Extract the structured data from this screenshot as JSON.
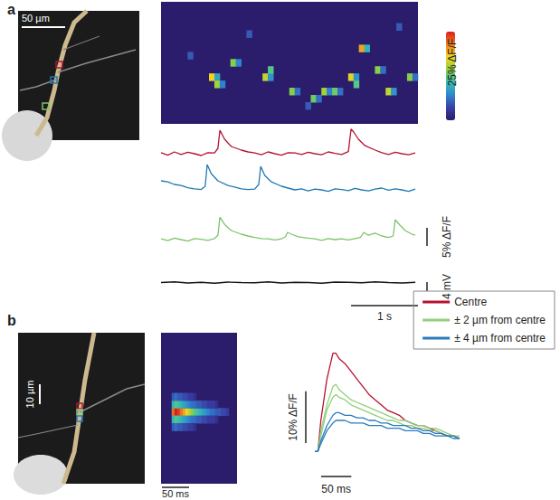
{
  "chart_data": [
    {
      "type": "image",
      "title": "a",
      "scale_bar": {
        "value": 50,
        "label": "50 µm"
      },
      "colors": [
        "#b5122f",
        "#1f78b4",
        "#7dc36b"
      ]
    },
    {
      "type": "heatmap",
      "x_bins": 48,
      "y_bins": 17,
      "color_range": [
        0,
        25
      ],
      "colorbar_label": "25% ΔF/F",
      "tick_labels": false,
      "cells": [
        [
          9,
          10,
          18
        ],
        [
          10,
          10,
          9
        ],
        [
          10,
          11,
          15
        ],
        [
          11,
          11,
          7
        ],
        [
          13,
          8,
          14
        ],
        [
          14,
          8,
          7
        ],
        [
          19,
          10,
          16
        ],
        [
          20,
          10,
          8
        ],
        [
          20,
          9,
          12
        ],
        [
          24,
          12,
          14
        ],
        [
          25,
          12,
          6
        ],
        [
          28,
          13,
          13
        ],
        [
          29,
          13,
          6
        ],
        [
          30,
          12,
          15
        ],
        [
          31,
          12,
          7
        ],
        [
          32,
          12,
          13
        ],
        [
          33,
          12,
          6
        ],
        [
          35,
          10,
          17
        ],
        [
          36,
          10,
          8
        ],
        [
          36,
          11,
          12
        ],
        [
          37,
          6,
          20
        ],
        [
          38,
          6,
          10
        ],
        [
          40,
          9,
          14
        ],
        [
          41,
          9,
          6
        ],
        [
          42,
          12,
          16
        ],
        [
          43,
          12,
          8
        ],
        [
          46,
          10,
          14
        ],
        [
          47,
          10,
          6
        ],
        [
          5,
          7,
          5
        ],
        [
          16,
          4,
          5
        ],
        [
          27,
          14,
          5
        ],
        [
          44,
          3,
          5
        ]
      ]
    },
    {
      "type": "line",
      "xlim": [
        0,
        3.84
      ],
      "ylim": [
        -2,
        8
      ],
      "tick_labels": false,
      "series": [
        {
          "color": "#b5122f",
          "x": [
            0,
            0.1,
            0.2,
            0.3,
            0.4,
            0.5,
            0.6,
            0.7,
            0.8,
            0.85,
            0.88,
            0.95,
            1.05,
            1.2,
            1.3,
            1.4,
            1.5,
            1.6,
            1.7,
            1.8,
            1.9,
            2.0,
            2.1,
            2.2,
            2.3,
            2.4,
            2.5,
            2.6,
            2.7,
            2.8,
            2.84,
            2.88,
            2.95,
            3.05,
            3.2,
            3.3,
            3.4,
            3.5,
            3.6,
            3.7,
            3.8
          ],
          "values": [
            0.3,
            -0.4,
            0.5,
            -0.2,
            0.4,
            0,
            -0.5,
            0.3,
            0.2,
            1.5,
            6.5,
            4,
            2,
            1,
            0.5,
            0.2,
            -0.3,
            0.5,
            0,
            -0.4,
            0.3,
            0.2,
            -0.2,
            0.4,
            0,
            -0.3,
            0.5,
            0.1,
            -0.2,
            0.6,
            6.8,
            6,
            4,
            2.2,
            1,
            0.3,
            -0.2,
            0.4,
            0,
            -0.3,
            0.2
          ]
        }
      ]
    },
    {
      "type": "line",
      "xlim": [
        0,
        3.84
      ],
      "ylim": [
        -2.5,
        7.5
      ],
      "tick_labels": false,
      "series": [
        {
          "color": "#1f78b4",
          "x": [
            0,
            0.1,
            0.2,
            0.3,
            0.4,
            0.5,
            0.6,
            0.66,
            0.69,
            0.75,
            0.85,
            1.0,
            1.1,
            1.2,
            1.3,
            1.4,
            1.46,
            1.49,
            1.55,
            1.65,
            1.8,
            1.9,
            2.0,
            2.1,
            2.2,
            2.3,
            2.4,
            2.5,
            2.6,
            2.7,
            2.8,
            2.9,
            3.0,
            3.1,
            3.2,
            3.3,
            3.4,
            3.5,
            3.6,
            3.7,
            3.8
          ],
          "values": [
            2.5,
            2.2,
            1.5,
            1.2,
            0.6,
            0.3,
            0.1,
            1,
            7,
            4.5,
            2.5,
            1.2,
            0.8,
            0.3,
            0.1,
            0.2,
            1.5,
            6.5,
            4,
            2.2,
            1,
            0.5,
            0,
            0.3,
            -0.3,
            0.2,
            0,
            -0.4,
            0.3,
            0.1,
            -0.2,
            0.4,
            0,
            -0.3,
            0.2,
            0.5,
            -0.1,
            0.3,
            0,
            -0.4,
            0.2
          ]
        }
      ]
    },
    {
      "type": "line",
      "xlim": [
        0,
        3.84
      ],
      "ylim": [
        -2.5,
        7.5
      ],
      "tick_labels": false,
      "scale_bars": [
        {
          "axis": "y",
          "value": 5,
          "label": "5% ΔF/F"
        }
      ],
      "series": [
        {
          "color": "#7dc36b",
          "x": [
            0,
            0.1,
            0.2,
            0.3,
            0.4,
            0.5,
            0.6,
            0.7,
            0.8,
            0.85,
            0.88,
            0.95,
            1.05,
            1.2,
            1.3,
            1.4,
            1.5,
            1.6,
            1.7,
            1.8,
            1.86,
            1.89,
            1.95,
            2.05,
            2.2,
            2.3,
            2.4,
            2.5,
            2.6,
            2.7,
            2.8,
            2.9,
            2.98,
            3.03,
            3.1,
            3.2,
            3.3,
            3.4,
            3.47,
            3.5,
            3.57,
            3.65,
            3.75,
            3.8
          ],
          "values": [
            0.2,
            -0.3,
            0.4,
            0,
            -0.4,
            0.3,
            0.1,
            -0.2,
            0.3,
            1.2,
            6.2,
            4.2,
            2.5,
            1.5,
            1,
            0.6,
            0.3,
            0.2,
            -0.1,
            0.2,
            0.8,
            2,
            1.5,
            0.8,
            0.4,
            0.2,
            -0.2,
            0.3,
            0,
            0.2,
            -0.1,
            0.3,
            0.6,
            2,
            1.2,
            1.8,
            1,
            0.6,
            1,
            5.5,
            4,
            2.5,
            1.5,
            1.2
          ]
        }
      ]
    },
    {
      "type": "line",
      "xlim": [
        0,
        3.84
      ],
      "ylim": [
        -5,
        5
      ],
      "tick_labels": false,
      "scale_bars": [
        {
          "axis": "y",
          "value": 4,
          "label": "4 mV"
        },
        {
          "axis": "x",
          "value": 1,
          "label": "1 s"
        }
      ],
      "series": [
        {
          "color": "#111111",
          "x": [
            0,
            0.2,
            0.4,
            0.6,
            0.8,
            1.0,
            1.2,
            1.4,
            1.6,
            1.8,
            2.0,
            2.2,
            2.4,
            2.6,
            2.8,
            3.0,
            3.2,
            3.4,
            3.6,
            3.8
          ],
          "values": [
            0,
            0.3,
            -0.2,
            0.1,
            -0.3,
            0.2,
            0,
            -0.1,
            0.3,
            -0.2,
            0.1,
            0,
            -0.3,
            0.2,
            0.1,
            -0.1,
            0.3,
            0,
            -0.2,
            0.1
          ]
        }
      ]
    },
    {
      "type": "image",
      "title": "b",
      "scale_bar": {
        "value": 10,
        "label": "10 µm"
      },
      "colors": [
        "#b5122f",
        "#8fd07a",
        "#2a7bbf"
      ]
    },
    {
      "type": "heatmap",
      "x_bins": 28,
      "y_bins": 20,
      "xlim": [
        0,
        140
      ],
      "color_range": [
        0,
        25
      ],
      "tick_labels": false,
      "scale_bars": [
        {
          "axis": "x",
          "value": 50,
          "label": "50 ms"
        }
      ],
      "cells": [
        [
          4,
          10,
          22
        ],
        [
          5,
          10,
          25
        ],
        [
          6,
          10,
          24
        ],
        [
          7,
          10,
          22
        ],
        [
          8,
          10,
          20
        ],
        [
          9,
          10,
          18
        ],
        [
          10,
          10,
          16
        ],
        [
          11,
          10,
          14
        ],
        [
          12,
          10,
          12
        ],
        [
          13,
          10,
          11
        ],
        [
          14,
          10,
          10
        ],
        [
          15,
          10,
          9
        ],
        [
          16,
          10,
          8
        ],
        [
          17,
          10,
          7
        ],
        [
          18,
          10,
          6
        ],
        [
          19,
          10,
          6
        ],
        [
          20,
          10,
          5
        ],
        [
          21,
          10,
          5
        ],
        [
          22,
          10,
          4
        ],
        [
          23,
          10,
          4
        ],
        [
          24,
          10,
          3
        ],
        [
          4,
          9,
          10
        ],
        [
          5,
          9,
          12
        ],
        [
          6,
          9,
          11
        ],
        [
          7,
          9,
          10
        ],
        [
          8,
          9,
          9
        ],
        [
          9,
          9,
          8
        ],
        [
          10,
          9,
          7
        ],
        [
          11,
          9,
          6
        ],
        [
          12,
          9,
          6
        ],
        [
          13,
          9,
          5
        ],
        [
          14,
          9,
          5
        ],
        [
          15,
          9,
          4
        ],
        [
          16,
          9,
          4
        ],
        [
          17,
          9,
          3
        ],
        [
          18,
          9,
          3
        ],
        [
          19,
          9,
          3
        ],
        [
          20,
          9,
          2
        ],
        [
          4,
          11,
          10
        ],
        [
          5,
          11,
          12
        ],
        [
          6,
          11,
          11
        ],
        [
          7,
          11,
          10
        ],
        [
          8,
          11,
          9
        ],
        [
          9,
          11,
          8
        ],
        [
          10,
          11,
          7
        ],
        [
          11,
          11,
          6
        ],
        [
          12,
          11,
          6
        ],
        [
          13,
          11,
          5
        ],
        [
          14,
          11,
          5
        ],
        [
          15,
          11,
          4
        ],
        [
          16,
          11,
          4
        ],
        [
          17,
          11,
          3
        ],
        [
          18,
          11,
          3
        ],
        [
          19,
          11,
          3
        ],
        [
          20,
          11,
          2
        ],
        [
          4,
          8,
          5
        ],
        [
          5,
          8,
          6
        ],
        [
          6,
          8,
          5
        ],
        [
          7,
          8,
          5
        ],
        [
          8,
          8,
          4
        ],
        [
          9,
          8,
          4
        ],
        [
          10,
          8,
          3
        ],
        [
          11,
          8,
          3
        ],
        [
          12,
          8,
          2
        ],
        [
          4,
          12,
          5
        ],
        [
          5,
          12,
          6
        ],
        [
          6,
          12,
          5
        ],
        [
          7,
          12,
          5
        ],
        [
          8,
          12,
          4
        ],
        [
          9,
          12,
          4
        ],
        [
          10,
          12,
          3
        ],
        [
          11,
          12,
          3
        ],
        [
          12,
          12,
          2
        ]
      ]
    },
    {
      "type": "line",
      "xlim": [
        0,
        240
      ],
      "ylim": [
        -1,
        20
      ],
      "tick_labels": false,
      "legend": "top-right",
      "scale_bars": [
        {
          "axis": "y",
          "value": 10,
          "label": "10% ΔF/F"
        },
        {
          "axis": "x",
          "value": 50,
          "label": "50 ms"
        }
      ],
      "series": [
        {
          "name": "Centre",
          "color": "#b5122f",
          "x": [
            0,
            5,
            10,
            20,
            30,
            35,
            40,
            50,
            60,
            70,
            80,
            90,
            100,
            110,
            120,
            130,
            140,
            150,
            160,
            170,
            180,
            190,
            200,
            210,
            220,
            230,
            240
          ],
          "values": [
            0,
            0,
            6,
            14,
            19,
            19,
            18,
            17,
            15.5,
            14,
            12.5,
            11,
            10,
            9,
            8,
            7.5,
            7,
            6,
            5.5,
            5,
            5,
            4.5,
            4,
            3.5,
            3,
            3,
            2.5
          ]
        },
        {
          "name": "± 2 µm from centre",
          "color": "#8fd07a",
          "x": [
            0,
            5,
            10,
            20,
            30,
            35,
            40,
            50,
            60,
            70,
            80,
            90,
            100,
            110,
            120,
            130,
            140,
            150,
            160,
            170,
            180,
            190,
            200,
            210,
            220,
            230,
            240
          ],
          "values": [
            0,
            0,
            4,
            9,
            12.5,
            13,
            12,
            11,
            10,
            9.5,
            9,
            8.5,
            8,
            7.5,
            7,
            6.5,
            6,
            6,
            5.5,
            5,
            5,
            4.5,
            4.5,
            4,
            3.5,
            3,
            3
          ]
        },
        {
          "name": "± 2 µm from centre",
          "color": "#8fd07a",
          "x": [
            0,
            5,
            10,
            20,
            30,
            35,
            40,
            50,
            60,
            70,
            80,
            90,
            100,
            110,
            120,
            130,
            140,
            150,
            160,
            170,
            180,
            190,
            200,
            210,
            220,
            230,
            240
          ],
          "values": [
            0,
            0,
            3,
            8,
            10.5,
            11,
            10.5,
            10,
            9,
            8.5,
            8,
            7.5,
            7,
            6.5,
            6,
            6,
            5.5,
            5,
            5,
            4.5,
            4.5,
            4,
            4,
            3.5,
            3,
            3,
            2.5
          ]
        },
        {
          "name": "± 4 µm from centre",
          "color": "#2a7bbf",
          "x": [
            0,
            5,
            10,
            20,
            30,
            35,
            40,
            50,
            60,
            70,
            80,
            90,
            100,
            110,
            120,
            130,
            140,
            150,
            160,
            170,
            180,
            190,
            200,
            210,
            220,
            230,
            240
          ],
          "values": [
            0,
            0,
            2,
            5,
            7,
            7.5,
            7.5,
            7,
            7,
            6.5,
            6.5,
            6,
            6,
            5.5,
            5.5,
            5,
            5,
            5,
            4.5,
            4.5,
            4,
            4,
            3.5,
            3.5,
            3,
            3,
            2.5
          ]
        },
        {
          "name": "± 4 µm from centre",
          "color": "#2a7bbf",
          "x": [
            0,
            5,
            10,
            20,
            30,
            35,
            40,
            50,
            60,
            70,
            80,
            90,
            100,
            110,
            120,
            130,
            140,
            150,
            160,
            170,
            180,
            190,
            200,
            210,
            220,
            230,
            240
          ],
          "values": [
            0,
            0,
            1.5,
            4,
            5.5,
            6,
            6,
            6,
            5.5,
            5.5,
            5.5,
            5,
            5,
            5,
            4.5,
            4.5,
            4.5,
            4,
            4,
            4,
            3.5,
            3.5,
            3,
            3,
            3,
            2.5,
            2.5
          ]
        }
      ]
    }
  ]
}
